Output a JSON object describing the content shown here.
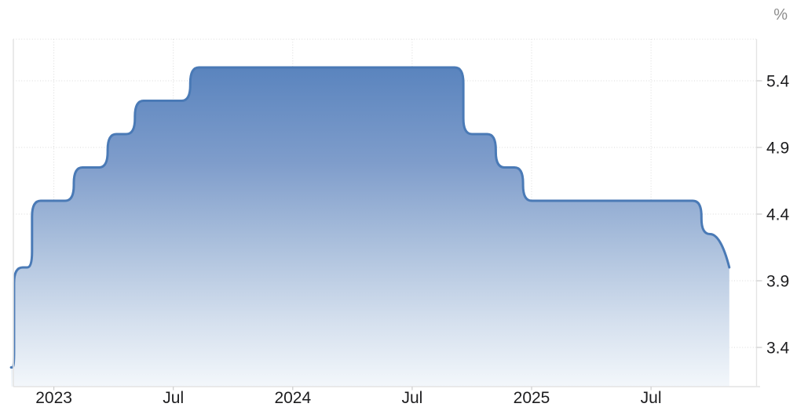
{
  "chart_data": {
    "type": "area",
    "title": "",
    "xlabel": "",
    "ylabel": "%",
    "y_unit_label": "%",
    "legend": "none",
    "grid": "dotted",
    "x_ticks": [
      {
        "label": "2023",
        "m": 0
      },
      {
        "label": "Jul",
        "m": 6
      },
      {
        "label": "2024",
        "m": 12
      },
      {
        "label": "Jul",
        "m": 18
      },
      {
        "label": "2025",
        "m": 24
      },
      {
        "label": "Jul",
        "m": 30
      }
    ],
    "y_ticks": [
      {
        "label": "5.4",
        "value": 5.4
      },
      {
        "label": "4.9",
        "value": 4.9
      },
      {
        "label": "4.4",
        "value": 4.4
      },
      {
        "label": "3.9",
        "value": 3.9
      },
      {
        "label": "3.4",
        "value": 3.4
      }
    ],
    "x_domain_months_rel_jan2023": [
      -2.15,
      35.3
    ],
    "y_plot_range": [
      3.11,
      5.71
    ],
    "series": [
      {
        "style": "smoothed-step-area",
        "points": [
          {
            "x_month": -2.15,
            "x_label": "Oct 2022",
            "value": 3.25
          },
          {
            "x_month": -2.0,
            "x_label": "Nov 2022",
            "value": 4.0
          },
          {
            "x_month": -1.1,
            "x_label": "Dec 2022",
            "value": 4.5
          },
          {
            "x_month": 1.0,
            "x_label": "Feb 2023",
            "value": 4.75
          },
          {
            "x_month": 2.7,
            "x_label": "Mar 2023",
            "value": 5.0
          },
          {
            "x_month": 4.07,
            "x_label": "May 2023",
            "value": 5.25
          },
          {
            "x_month": 6.85,
            "x_label": "Jul 2023",
            "value": 5.5
          },
          {
            "x_month": 20.57,
            "x_label": "Sep 2024",
            "value": 5.0
          },
          {
            "x_month": 22.2,
            "x_label": "Nov 2024",
            "value": 4.75
          },
          {
            "x_month": 23.57,
            "x_label": "Dec 2024",
            "value": 4.5
          },
          {
            "x_month": 32.53,
            "x_label": "Sep 2025",
            "value": 4.25
          },
          {
            "x_month": 33.93,
            "x_label": "Oct 2025",
            "value": 4.0
          }
        ]
      }
    ],
    "colors": {
      "line": "#4a7ab6",
      "fill_top": "#5a84be",
      "fill_mid1": "#7f9dcb",
      "fill_mid2": "#aabfdc",
      "fill_mid3": "#d5e0ee",
      "fill_bottom": "#f3f7fb",
      "grid": "#dadada",
      "axis": "#e4e4e4",
      "tick": "#cccccc",
      "tick_text": "#1d1d1f",
      "unit_text": "#8e8e8e"
    }
  }
}
